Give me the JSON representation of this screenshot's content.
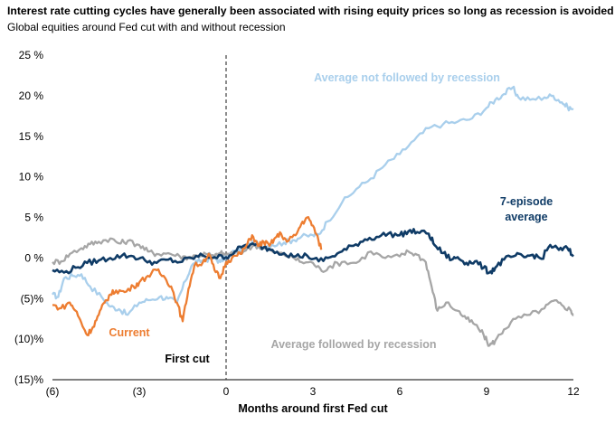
{
  "chart_data": {
    "type": "line",
    "title": "Interest rate cutting cycles have generally been associated with rising equity prices so long as recession is avoided",
    "subtitle": "Global equities around Fed cut with and without recession",
    "xlabel": "Months around first Fed cut",
    "ylabel": "",
    "xlim": [
      -6,
      12
    ],
    "ylim": [
      -15,
      25
    ],
    "x_ticks": [
      -6,
      -3,
      0,
      3,
      6,
      9,
      12
    ],
    "x_tick_labels": [
      "(6)",
      "(3)",
      "0",
      "3",
      "6",
      "9",
      "12"
    ],
    "y_ticks": [
      25,
      20,
      15,
      10,
      5,
      0,
      -5,
      -10,
      -15
    ],
    "y_tick_labels": [
      "25 %",
      "20 %",
      "15 %",
      "10 %",
      "5 %",
      "0 %",
      "(5)%",
      "(10)%",
      "(15)%"
    ],
    "vline": {
      "x": 0,
      "style": "dashed",
      "label": "First cut"
    },
    "series": [
      {
        "name": "Average not followed by recession",
        "color": "#a9cfec",
        "points": [
          [
            -6,
            -4.5
          ],
          [
            -5.8,
            -4.8
          ],
          [
            -5.6,
            -2.5
          ],
          [
            -5.3,
            -2.2
          ],
          [
            -5,
            -2.0
          ],
          [
            -4.7,
            -3.5
          ],
          [
            -4.3,
            -4.8
          ],
          [
            -4,
            -6.0
          ],
          [
            -3.7,
            -6.3
          ],
          [
            -3.4,
            -7.0
          ],
          [
            -3,
            -5.5
          ],
          [
            -2.7,
            -5.2
          ],
          [
            -2.3,
            -4.8
          ],
          [
            -2,
            -5.0
          ],
          [
            -1.7,
            -5.5
          ],
          [
            -1.4,
            -2.8
          ],
          [
            -1.2,
            -1.0
          ],
          [
            -1,
            -0.5
          ],
          [
            -0.7,
            -0.2
          ],
          [
            -0.4,
            0.0
          ],
          [
            -0.2,
            -0.5
          ],
          [
            0,
            0.2
          ],
          [
            0.3,
            0.8
          ],
          [
            0.6,
            1.2
          ],
          [
            1,
            2.0
          ],
          [
            1.3,
            1.4
          ],
          [
            1.6,
            1.6
          ],
          [
            2,
            1.9
          ],
          [
            2.3,
            2.2
          ],
          [
            2.6,
            2.6
          ],
          [
            3,
            2.8
          ],
          [
            3.2,
            2.9
          ],
          [
            3.5,
            4.5
          ],
          [
            4,
            6.8
          ],
          [
            4.5,
            8.5
          ],
          [
            5,
            9.8
          ],
          [
            5.5,
            11.5
          ],
          [
            6,
            12.8
          ],
          [
            6.5,
            14.5
          ],
          [
            7,
            16.0
          ],
          [
            7.5,
            16.5
          ],
          [
            8,
            16.8
          ],
          [
            8.5,
            17.2
          ],
          [
            9,
            18.5
          ],
          [
            9.3,
            19.5
          ],
          [
            9.6,
            20.2
          ],
          [
            9.9,
            21.0
          ],
          [
            10.1,
            19.8
          ],
          [
            10.5,
            19.5
          ],
          [
            11,
            19.8
          ],
          [
            11.3,
            20.0
          ],
          [
            11.6,
            19.2
          ],
          [
            11.8,
            18.6
          ],
          [
            12,
            18.3
          ]
        ]
      },
      {
        "name": "Average followed by recession",
        "color": "#a6a6a6",
        "points": [
          [
            -6,
            -0.5
          ],
          [
            -5.7,
            -0.4
          ],
          [
            -5.4,
            0.5
          ],
          [
            -5,
            1.2
          ],
          [
            -4.7,
            1.7
          ],
          [
            -4.4,
            2.0
          ],
          [
            -4,
            2.4
          ],
          [
            -3.7,
            1.8
          ],
          [
            -3.4,
            2.1
          ],
          [
            -3,
            1.6
          ],
          [
            -2.7,
            0.8
          ],
          [
            -2.4,
            0.5
          ],
          [
            -2,
            0.6
          ],
          [
            -1.6,
            0.2
          ],
          [
            -1.3,
            0.1
          ],
          [
            -1,
            0.3
          ],
          [
            -0.7,
            0.5
          ],
          [
            -0.4,
            0.2
          ],
          [
            -0.2,
            0.6
          ],
          [
            0,
            0.4
          ],
          [
            0.3,
            0.6
          ],
          [
            0.6,
            0.8
          ],
          [
            1,
            1.6
          ],
          [
            1.3,
            1.2
          ],
          [
            1.6,
            0.8
          ],
          [
            2,
            0.4
          ],
          [
            2.3,
            0.1
          ],
          [
            2.6,
            -0.5
          ],
          [
            3,
            -0.6
          ],
          [
            3.3,
            -1.6
          ],
          [
            3.6,
            -1.0
          ],
          [
            4,
            -0.5
          ],
          [
            4.5,
            -0.6
          ],
          [
            5,
            0.8
          ],
          [
            5.5,
            0.0
          ],
          [
            6,
            0.2
          ],
          [
            6.3,
            0.8
          ],
          [
            6.6,
            0.4
          ],
          [
            6.9,
            -0.5
          ],
          [
            7.1,
            -3.5
          ],
          [
            7.3,
            -6.5
          ],
          [
            7.6,
            -5.5
          ],
          [
            8,
            -6.5
          ],
          [
            8.3,
            -7.5
          ],
          [
            8.6,
            -8.2
          ],
          [
            8.9,
            -9.5
          ],
          [
            9.1,
            -10.8
          ],
          [
            9.3,
            -10.2
          ],
          [
            9.6,
            -8.8
          ],
          [
            10,
            -7.5
          ],
          [
            10.5,
            -7.0
          ],
          [
            11,
            -6.2
          ],
          [
            11.3,
            -5.3
          ],
          [
            11.6,
            -5.8
          ],
          [
            11.9,
            -6.4
          ],
          [
            12,
            -7.0
          ]
        ]
      },
      {
        "name": "7-episode average",
        "color": "#0f3b66",
        "points": [
          [
            -6,
            -1.5
          ],
          [
            -5.6,
            -1.8
          ],
          [
            -5.2,
            -1.2
          ],
          [
            -4.8,
            -0.6
          ],
          [
            -4.4,
            -0.3
          ],
          [
            -4,
            0.0
          ],
          [
            -3.6,
            0.3
          ],
          [
            -3.2,
            0.2
          ],
          [
            -2.8,
            -0.3
          ],
          [
            -2.4,
            -0.6
          ],
          [
            -2,
            -0.2
          ],
          [
            -1.6,
            -0.5
          ],
          [
            -1.2,
            0.0
          ],
          [
            -0.8,
            0.3
          ],
          [
            -0.4,
            0.1
          ],
          [
            0,
            0.1
          ],
          [
            0.3,
            0.8
          ],
          [
            0.6,
            1.5
          ],
          [
            1,
            1.6
          ],
          [
            1.3,
            1.3
          ],
          [
            1.6,
            1.0
          ],
          [
            2,
            0.6
          ],
          [
            2.4,
            0.2
          ],
          [
            2.8,
            0.3
          ],
          [
            3.2,
            -0.4
          ],
          [
            3.6,
            0.1
          ],
          [
            4,
            0.8
          ],
          [
            4.4,
            1.5
          ],
          [
            4.8,
            2.3
          ],
          [
            5.2,
            2.6
          ],
          [
            5.6,
            3.0
          ],
          [
            6,
            2.8
          ],
          [
            6.3,
            3.3
          ],
          [
            6.6,
            3.2
          ],
          [
            7,
            3.0
          ],
          [
            7.2,
            1.6
          ],
          [
            7.5,
            0.6
          ],
          [
            7.8,
            -0.2
          ],
          [
            8,
            0.1
          ],
          [
            8.3,
            -0.6
          ],
          [
            8.6,
            -0.4
          ],
          [
            8.9,
            -1.2
          ],
          [
            9.1,
            -1.8
          ],
          [
            9.3,
            -1.2
          ],
          [
            9.6,
            -0.2
          ],
          [
            10,
            0.3
          ],
          [
            10.3,
            0.1
          ],
          [
            10.6,
            0.4
          ],
          [
            10.9,
            -0.1
          ],
          [
            11.2,
            1.6
          ],
          [
            11.5,
            1.0
          ],
          [
            11.8,
            1.2
          ],
          [
            12,
            0.2
          ]
        ]
      },
      {
        "name": "Current",
        "color": "#ed7d31",
        "points": [
          [
            -6,
            -5.8
          ],
          [
            -5.7,
            -6.2
          ],
          [
            -5.4,
            -5.5
          ],
          [
            -5.2,
            -6.5
          ],
          [
            -5,
            -8.0
          ],
          [
            -4.8,
            -9.5
          ],
          [
            -4.6,
            -8.5
          ],
          [
            -4.4,
            -7.0
          ],
          [
            -4.2,
            -5.5
          ],
          [
            -4,
            -4.5
          ],
          [
            -3.8,
            -4.0
          ],
          [
            -3.5,
            -4.2
          ],
          [
            -3.2,
            -3.5
          ],
          [
            -3,
            -3.0
          ],
          [
            -2.7,
            -2.2
          ],
          [
            -2.4,
            -1.5
          ],
          [
            -2.1,
            -2.5
          ],
          [
            -1.9,
            -3.5
          ],
          [
            -1.7,
            -5.5
          ],
          [
            -1.5,
            -7.8
          ],
          [
            -1.3,
            -3.8
          ],
          [
            -1.1,
            -1.0
          ],
          [
            -0.8,
            -0.5
          ],
          [
            -0.6,
            0.5
          ],
          [
            -0.4,
            -1.5
          ],
          [
            -0.2,
            -2.5
          ],
          [
            0,
            -0.5
          ],
          [
            0.2,
            0.0
          ],
          [
            0.5,
            0.5
          ],
          [
            0.7,
            1.5
          ],
          [
            0.9,
            2.8
          ],
          [
            1.1,
            1.5
          ],
          [
            1.3,
            2.0
          ],
          [
            1.5,
            1.5
          ],
          [
            1.7,
            2.5
          ],
          [
            1.9,
            3.0
          ],
          [
            2.1,
            2.0
          ],
          [
            2.4,
            2.8
          ],
          [
            2.6,
            4.2
          ],
          [
            2.8,
            5.0
          ],
          [
            3,
            4.0
          ],
          [
            3.2,
            2.0
          ],
          [
            3.3,
            1.2
          ]
        ]
      }
    ],
    "annotations": [
      {
        "text": "Average not followed by recession",
        "color": "#a9cfec"
      },
      {
        "text": "7-episode",
        "color": "#0f3b66"
      },
      {
        "text": "average",
        "color": "#0f3b66"
      },
      {
        "text": "Current",
        "color": "#ed7d31"
      },
      {
        "text": "Average followed by recession",
        "color": "#a6a6a6"
      }
    ]
  }
}
